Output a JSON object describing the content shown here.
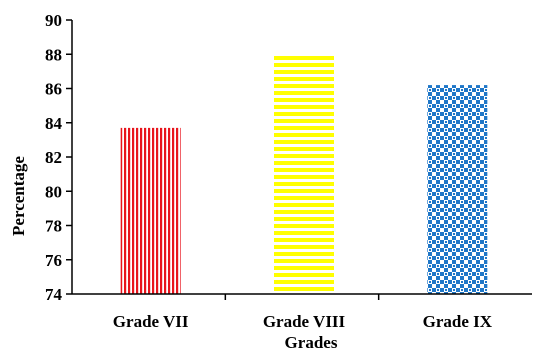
{
  "chart_data": {
    "type": "bar",
    "title": "",
    "xlabel": "Grades",
    "ylabel": "Percentage",
    "categories": [
      "Grade VII",
      "Grade VIII",
      "Grade IX"
    ],
    "values": [
      83.7,
      88.0,
      86.2
    ],
    "ylim": [
      74,
      90
    ],
    "yticks": [
      "74",
      "76",
      "78",
      "80",
      "82",
      "84",
      "86",
      "88",
      "90"
    ],
    "grid": false,
    "legend": "none",
    "bar_styles": [
      {
        "pattern": "vertical-stripes",
        "color": "#e8141c"
      },
      {
        "pattern": "horizontal-stripes",
        "color": "#ffff00"
      },
      {
        "pattern": "checker",
        "color": "#1f77c8"
      }
    ]
  }
}
